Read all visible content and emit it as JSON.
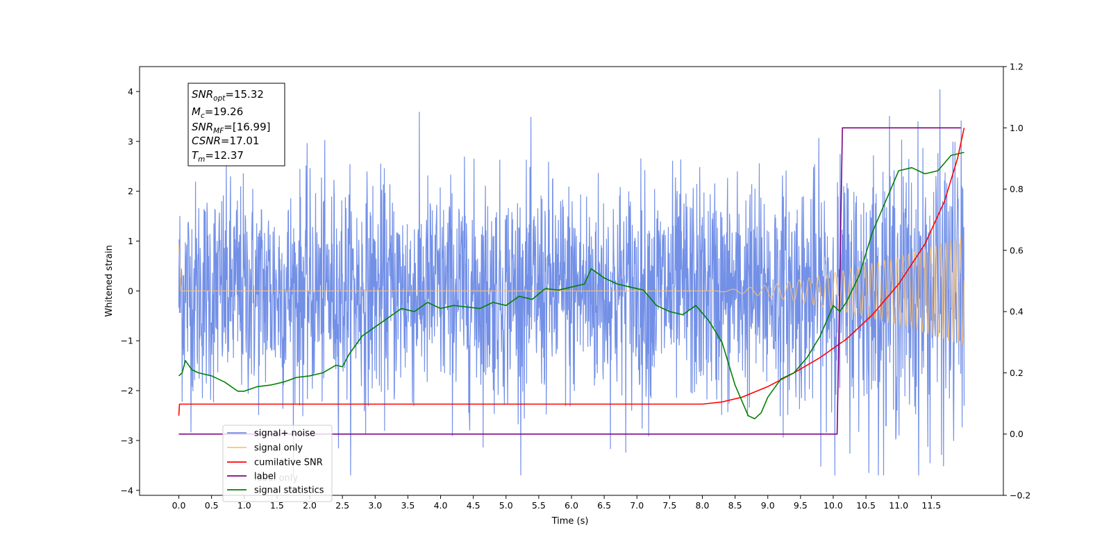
{
  "chart_data": {
    "type": "line",
    "xlabel": "Time (s)",
    "ylabel": "Whitened strain",
    "ylabel_right": "",
    "xlim": [
      -0.6,
      12.6
    ],
    "ylim": [
      -4.1,
      4.5
    ],
    "ylim_right": [
      -0.2,
      1.2
    ],
    "x_ticks": [
      "0.0",
      "0.5",
      "1.0",
      "1.5",
      "2.0",
      "2.5",
      "3.0",
      "3.5",
      "4.0",
      "4.5",
      "5.0",
      "5.5",
      "6.0",
      "6.5",
      "7.0",
      "7.5",
      "8.0",
      "8.5",
      "9.0",
      "9.5",
      "10.0",
      "10.5",
      "11.0",
      "11.5"
    ],
    "y_ticks_left": [
      "−4",
      "−3",
      "−2",
      "−1",
      "0",
      "1",
      "2",
      "3",
      "4"
    ],
    "y_ticks_right": [
      "−0.2",
      "0.0",
      "0.2",
      "0.4",
      "0.6",
      "0.8",
      "1.0",
      "1.2"
    ],
    "annotation": {
      "snr_opt": {
        "base": "SNR",
        "sub": "opt",
        "value": "=15.32"
      },
      "mc": {
        "base": "M",
        "sub": "c",
        "value": "=19.26"
      },
      "snr_mf": {
        "base": "SNR",
        "sub": "MF",
        "value": "=[16.99]"
      },
      "csnr": {
        "base": "CSNR",
        "value": "=17.01"
      },
      "tm": {
        "base": "T",
        "sub": "m",
        "value": "=12.37"
      }
    },
    "legend": {
      "placement": "lower-left",
      "entries": [
        {
          "name": "signal+ noise",
          "color": "#6b8ae6"
        },
        {
          "name": "signal only",
          "color": "#ffc26b"
        },
        {
          "name": "cumilative SNR",
          "color": "#ff0000"
        },
        {
          "name": "label",
          "color": "#800080"
        },
        {
          "name": "signal statistics",
          "color": "#008000"
        }
      ],
      "hidden_entry": "label only"
    },
    "series": [
      {
        "name": "signal+ noise",
        "axis": "left",
        "color": "#6b8ae6",
        "description_free": true,
        "x_range": [
          0.0,
          12.0
        ],
        "sigma": 1.0,
        "samples": 2400,
        "envelope": [
          [
            0.0,
            1.2
          ],
          [
            9.5,
            1.25
          ],
          [
            12.0,
            1.7
          ]
        ]
      },
      {
        "name": "signal only",
        "axis": "left",
        "color": "#ffc26b",
        "x_range": [
          0.0,
          12.0
        ],
        "chirp_start": 8.0,
        "amp_end": 1.1,
        "f0": 2.0,
        "f1": 14.0
      },
      {
        "name": "cumilative SNR",
        "axis": "right",
        "color": "#ff0000",
        "x": [
          0.0,
          0.01,
          8.0,
          8.3,
          8.6,
          9.0,
          9.4,
          9.8,
          10.2,
          10.6,
          11.0,
          11.4,
          11.7,
          11.9,
          12.0
        ],
        "values": [
          0.06,
          0.098,
          0.098,
          0.105,
          0.12,
          0.155,
          0.2,
          0.25,
          0.31,
          0.39,
          0.49,
          0.62,
          0.76,
          0.9,
          1.0
        ]
      },
      {
        "name": "label",
        "axis": "right",
        "color": "#800080",
        "x": [
          0.0,
          10.06,
          10.14,
          11.95
        ],
        "values": [
          0.0,
          0.0,
          1.0,
          1.0
        ]
      },
      {
        "name": "signal statistics",
        "axis": "right",
        "color": "#008000",
        "x": [
          0.0,
          0.05,
          0.1,
          0.2,
          0.3,
          0.5,
          0.7,
          0.9,
          1.0,
          1.2,
          1.4,
          1.6,
          1.8,
          2.0,
          2.2,
          2.4,
          2.5,
          2.6,
          2.8,
          3.0,
          3.2,
          3.4,
          3.6,
          3.8,
          4.0,
          4.2,
          4.4,
          4.6,
          4.8,
          5.0,
          5.2,
          5.4,
          5.6,
          5.8,
          6.0,
          6.2,
          6.3,
          6.5,
          6.7,
          6.9,
          7.1,
          7.3,
          7.5,
          7.7,
          7.9,
          8.1,
          8.3,
          8.5,
          8.7,
          8.8,
          8.9,
          9.0,
          9.2,
          9.4,
          9.6,
          9.8,
          10.0,
          10.1,
          10.2,
          10.4,
          10.6,
          10.8,
          11.0,
          11.2,
          11.4,
          11.6,
          11.8,
          12.0
        ],
        "values": [
          0.19,
          0.2,
          0.24,
          0.21,
          0.2,
          0.19,
          0.17,
          0.14,
          0.14,
          0.155,
          0.16,
          0.17,
          0.185,
          0.19,
          0.2,
          0.225,
          0.22,
          0.26,
          0.32,
          0.35,
          0.38,
          0.41,
          0.4,
          0.43,
          0.41,
          0.42,
          0.415,
          0.41,
          0.43,
          0.42,
          0.45,
          0.44,
          0.475,
          0.47,
          0.48,
          0.49,
          0.54,
          0.51,
          0.49,
          0.48,
          0.47,
          0.42,
          0.4,
          0.39,
          0.42,
          0.37,
          0.3,
          0.16,
          0.06,
          0.05,
          0.07,
          0.12,
          0.18,
          0.2,
          0.25,
          0.32,
          0.42,
          0.4,
          0.43,
          0.52,
          0.66,
          0.76,
          0.86,
          0.87,
          0.85,
          0.86,
          0.91,
          0.92
        ]
      }
    ]
  }
}
